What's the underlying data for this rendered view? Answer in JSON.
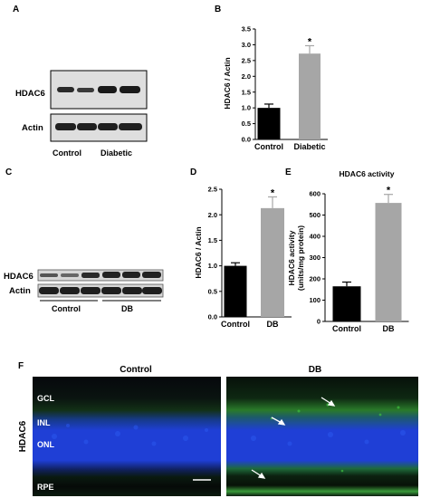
{
  "panels": {
    "A": {
      "letter": "A",
      "rows": [
        "HDAC6",
        "Actin"
      ],
      "groups": [
        "Control",
        "Diabetic"
      ]
    },
    "C": {
      "letter": "C",
      "rows": [
        "HDAC6",
        "Actin"
      ],
      "groups": [
        "Control",
        "DB"
      ]
    },
    "F": {
      "letter": "F",
      "columns": [
        "Control",
        "DB"
      ],
      "side_label": "HDAC6",
      "layers": [
        "GCL",
        "INL",
        "ONL",
        "RPE"
      ]
    }
  },
  "colors": {
    "control_bar": "#000000",
    "treated_bar": "#a6a6a6",
    "dapi": "#1f3fd6",
    "hdac6_signal": "#2f9a2f",
    "tissue_background": "#06080c"
  },
  "chart_data": [
    {
      "panel": "B",
      "type": "bar",
      "title": "",
      "xlabel": "",
      "ylabel": "HDAC6 / Actin",
      "categories": [
        "Control",
        "Diabetic"
      ],
      "values": [
        1.0,
        2.72
      ],
      "errors": [
        0.12,
        0.25
      ],
      "ylim": [
        0,
        3.5
      ],
      "yticks": [
        "0.0",
        "0.5",
        "1.0",
        "1.5",
        "2.0",
        "2.5",
        "3.0",
        "3.5"
      ],
      "significance": [
        "",
        "*"
      ]
    },
    {
      "panel": "D",
      "type": "bar",
      "title": "",
      "xlabel": "",
      "ylabel": "HDAC6 / Actin",
      "categories": [
        "Control",
        "DB"
      ],
      "values": [
        1.0,
        2.13
      ],
      "errors": [
        0.06,
        0.22
      ],
      "ylim": [
        0,
        2.5
      ],
      "yticks": [
        "0.0",
        "0.5",
        "1.0",
        "1.5",
        "2.0",
        "2.5"
      ],
      "significance": [
        "",
        "*"
      ]
    },
    {
      "panel": "E",
      "type": "bar",
      "title": "HDAC6 activity",
      "xlabel": "",
      "ylabel": "HDAC6 activity (units/mg protein)",
      "ylabel_lines": [
        "HDAC6 activity",
        "(units/mg protein)"
      ],
      "categories": [
        "Control",
        "DB"
      ],
      "values": [
        165,
        557
      ],
      "errors": [
        20,
        40
      ],
      "ylim": [
        0,
        600
      ],
      "yticks": [
        "0",
        "100",
        "200",
        "300",
        "400",
        "500",
        "600"
      ],
      "significance": [
        "",
        "*"
      ]
    }
  ]
}
